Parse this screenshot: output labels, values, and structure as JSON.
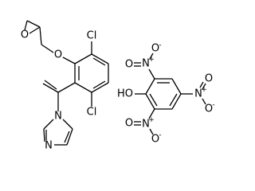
{
  "molecules": [
    {
      "atoms": [
        "O",
        "O",
        "Cl",
        "Cl",
        "N",
        "N"
      ]
    },
    {
      "atoms": [
        "HO",
        "N",
        "O",
        "O",
        "N",
        "O",
        "O",
        "N",
        "O",
        "O"
      ],
      "charges": [
        "+",
        "-",
        "+",
        "-",
        "+",
        "-"
      ]
    }
  ]
}
